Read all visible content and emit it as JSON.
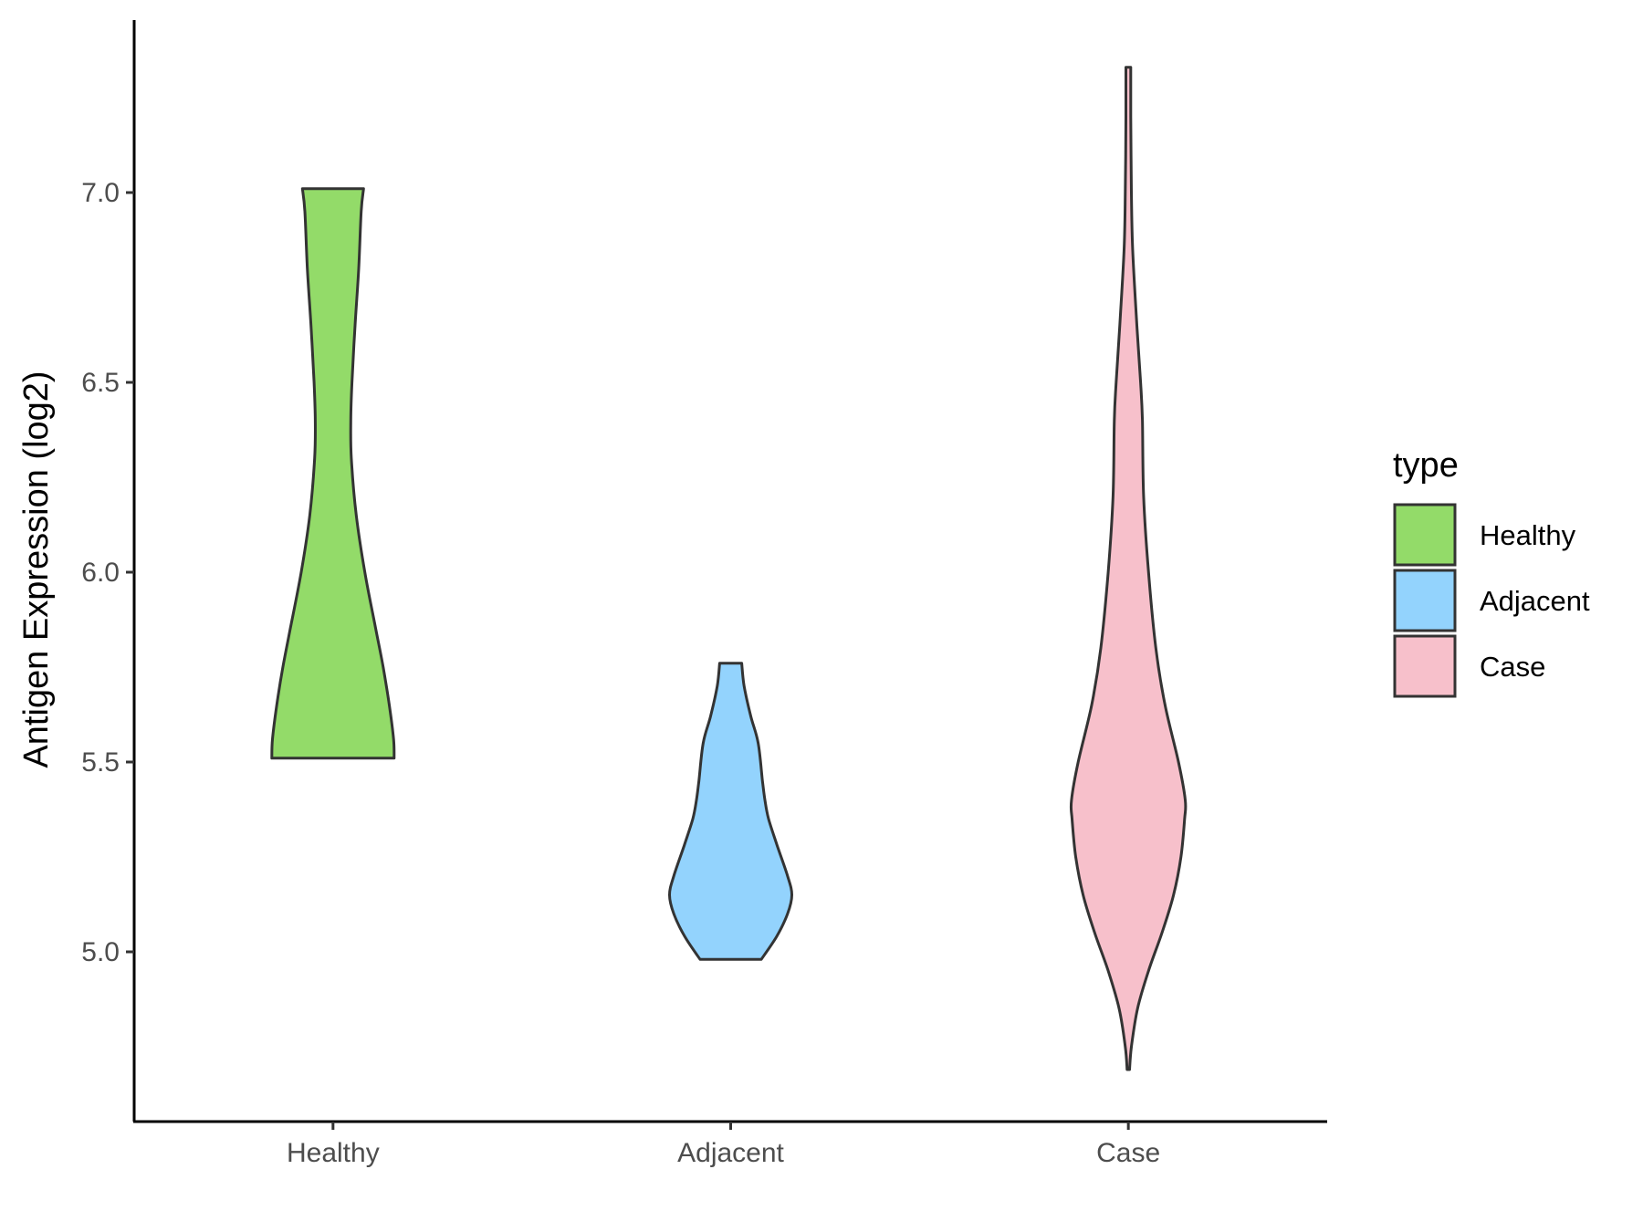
{
  "chart_data": {
    "type": "violin",
    "title": "",
    "xlabel": "",
    "ylabel": "Antigen Expression (log2)",
    "ylim": [
      4.6,
      7.45
    ],
    "yticks": [
      "5.0",
      "5.5",
      "6.0",
      "6.5",
      "7.0"
    ],
    "categories": [
      "Healthy",
      "Adjacent",
      "Case"
    ],
    "legend": {
      "title": "type",
      "placement": "right",
      "entries": [
        "Healthy",
        "Adjacent",
        "Case"
      ]
    },
    "grid": false,
    "series": [
      {
        "name": "Healthy",
        "color": "#93DB69",
        "min": 5.51,
        "max": 7.01,
        "density_profile": [
          [
            5.51,
            1.0
          ],
          [
            5.56,
            0.99
          ],
          [
            5.65,
            0.92
          ],
          [
            5.75,
            0.82
          ],
          [
            5.85,
            0.7
          ],
          [
            6.0,
            0.52
          ],
          [
            6.15,
            0.38
          ],
          [
            6.3,
            0.3
          ],
          [
            6.4,
            0.29
          ],
          [
            6.5,
            0.31
          ],
          [
            6.65,
            0.36
          ],
          [
            6.8,
            0.42
          ],
          [
            6.95,
            0.46
          ],
          [
            7.01,
            0.5
          ]
        ]
      },
      {
        "name": "Adjacent",
        "color": "#93D3FD",
        "min": 4.98,
        "max": 5.76,
        "density_profile": [
          [
            4.98,
            0.5
          ],
          [
            5.04,
            0.75
          ],
          [
            5.1,
            0.93
          ],
          [
            5.15,
            1.0
          ],
          [
            5.2,
            0.93
          ],
          [
            5.28,
            0.76
          ],
          [
            5.35,
            0.62
          ],
          [
            5.4,
            0.56
          ],
          [
            5.45,
            0.52
          ],
          [
            5.55,
            0.45
          ],
          [
            5.62,
            0.33
          ],
          [
            5.7,
            0.22
          ],
          [
            5.76,
            0.18
          ]
        ]
      },
      {
        "name": "Case",
        "color": "#F7C0CB",
        "min": 4.69,
        "max": 7.33,
        "density_profile": [
          [
            4.69,
            0.02
          ],
          [
            4.75,
            0.05
          ],
          [
            4.85,
            0.15
          ],
          [
            4.95,
            0.33
          ],
          [
            5.05,
            0.55
          ],
          [
            5.15,
            0.74
          ],
          [
            5.25,
            0.86
          ],
          [
            5.35,
            0.92
          ],
          [
            5.4,
            0.93
          ],
          [
            5.5,
            0.82
          ],
          [
            5.65,
            0.6
          ],
          [
            5.8,
            0.45
          ],
          [
            6.0,
            0.33
          ],
          [
            6.2,
            0.25
          ],
          [
            6.4,
            0.23
          ],
          [
            6.5,
            0.2
          ],
          [
            6.65,
            0.14
          ],
          [
            6.85,
            0.07
          ],
          [
            7.0,
            0.05
          ],
          [
            7.2,
            0.04
          ],
          [
            7.33,
            0.04
          ]
        ]
      }
    ]
  }
}
